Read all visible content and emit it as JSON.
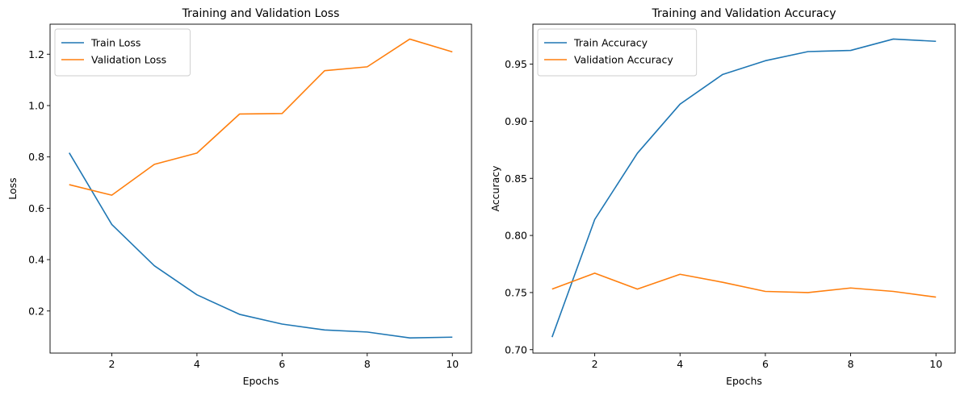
{
  "chart_data": [
    {
      "type": "line",
      "title": "Training and Validation Loss",
      "xlabel": "Epochs",
      "ylabel": "Loss",
      "xlim": [
        0.55,
        10.45
      ],
      "ylim": [
        0.036,
        1.317
      ],
      "xticks": [
        2,
        4,
        6,
        8,
        10
      ],
      "yticks": [
        0.2,
        0.4,
        0.6,
        0.8,
        1.0,
        1.2
      ],
      "ytick_decimals": 1,
      "legend": "top-left",
      "grid": false,
      "x": [
        1,
        2,
        3,
        4,
        5,
        6,
        7,
        8,
        9,
        10
      ],
      "series": [
        {
          "name": "Train Loss",
          "color": "#1f77b4",
          "values": [
            0.816,
            0.537,
            0.376,
            0.263,
            0.187,
            0.149,
            0.126,
            0.118,
            0.095,
            0.098
          ]
        },
        {
          "name": "Validation Loss",
          "color": "#ff7f0e",
          "values": [
            0.692,
            0.651,
            0.771,
            0.815,
            0.967,
            0.969,
            1.136,
            1.151,
            1.259,
            1.209
          ]
        }
      ]
    },
    {
      "type": "line",
      "title": "Training and Validation Accuracy",
      "xlabel": "Epochs",
      "ylabel": "Accuracy",
      "xlim": [
        0.55,
        10.45
      ],
      "ylim": [
        0.697,
        0.985
      ],
      "xticks": [
        2,
        4,
        6,
        8,
        10
      ],
      "yticks": [
        0.7,
        0.75,
        0.8,
        0.85,
        0.9,
        0.95
      ],
      "ytick_decimals": 2,
      "legend": "top-left",
      "grid": false,
      "x": [
        1,
        2,
        3,
        4,
        5,
        6,
        7,
        8,
        9,
        10
      ],
      "series": [
        {
          "name": "Train Accuracy",
          "color": "#1f77b4",
          "values": [
            0.711,
            0.814,
            0.872,
            0.915,
            0.941,
            0.953,
            0.961,
            0.962,
            0.972,
            0.97
          ]
        },
        {
          "name": "Validation Accuracy",
          "color": "#ff7f0e",
          "values": [
            0.753,
            0.767,
            0.753,
            0.766,
            0.759,
            0.751,
            0.75,
            0.754,
            0.751,
            0.746
          ]
        }
      ]
    }
  ]
}
